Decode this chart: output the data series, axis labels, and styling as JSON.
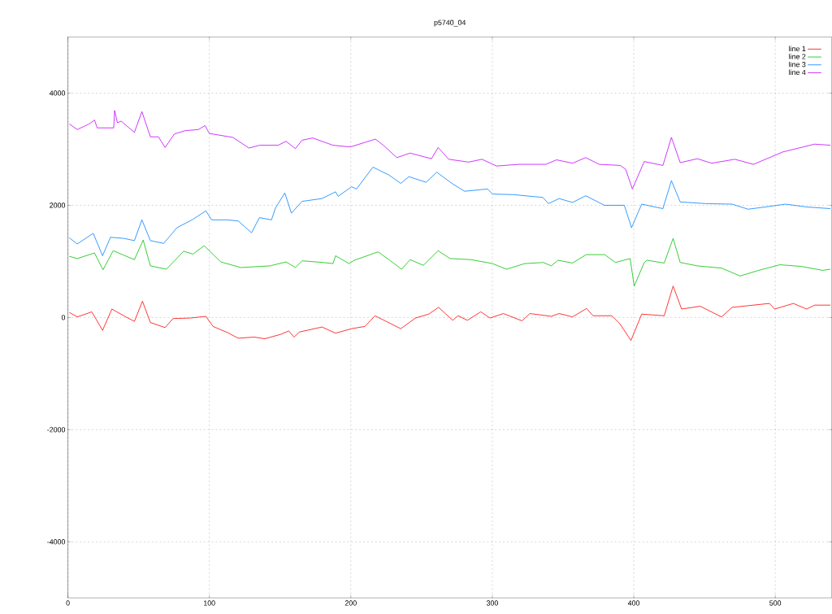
{
  "chart_data": {
    "type": "line",
    "title": "p5740_04",
    "xlim": [
      0,
      540
    ],
    "ylim": [
      -5000,
      5000
    ],
    "xticks": [
      0,
      100,
      200,
      300,
      400,
      500
    ],
    "yticks": [
      -4000,
      -2000,
      0,
      2000,
      4000
    ],
    "grid": true,
    "legend": "top right",
    "series": [
      {
        "name": "line 1",
        "color": "#ff0000",
        "x": [
          1,
          6.6,
          16.9,
          24.5,
          31.1,
          39.5,
          47,
          52.7,
          58.3,
          68.7,
          74.3,
          86.5,
          97.5,
          102.6,
          112.9,
          120.4,
          131.7,
          139.2,
          150.5,
          156.1,
          159.8,
          163.6,
          179.6,
          189.2,
          200.5,
          209.9,
          217.1,
          225,
          235.3,
          245.7,
          255.1,
          262,
          272,
          275.8,
          282.4,
          291.8,
          298.4,
          307.8,
          321,
          326.6,
          341.7,
          347.2,
          356.7,
          366.6,
          371.2,
          384.4,
          390.1,
          398,
          405.6,
          421.5,
          427.8,
          433.8,
          447,
          462,
          469.5,
          495.9,
          499.6,
          512.8,
          522.2,
          527.8,
          539
        ],
        "values": [
          90,
          10,
          100,
          -230,
          150,
          30,
          -70,
          290,
          -90,
          -180,
          -20,
          -10,
          20,
          -160,
          -270,
          -370,
          -350,
          -380,
          -300,
          -240,
          -350,
          -260,
          -170,
          -280,
          -200,
          -160,
          30,
          -70,
          -200,
          -10,
          60,
          180,
          -50,
          30,
          -50,
          100,
          -10,
          70,
          -60,
          70,
          20,
          70,
          10,
          160,
          30,
          30,
          -110,
          -410,
          60,
          30,
          560,
          150,
          200,
          10,
          180,
          250,
          150,
          250,
          150,
          220,
          220
        ]
      },
      {
        "name": "line 2",
        "color": "#00c000",
        "x": [
          1,
          6.6,
          18.8,
          24.8,
          32,
          47,
          53.2,
          58.3,
          69.6,
          81.8,
          88.4,
          96.3,
          108.1,
          122.2,
          142.9,
          154.2,
          160.8,
          165.5,
          180.5,
          187.4,
          189.2,
          198.7,
          202.5,
          219.3,
          226.9,
          235.9,
          241.9,
          251.3,
          261.7,
          270.1,
          285.2,
          300.2,
          310,
          322.8,
          336,
          341.7,
          346.4,
          356.7,
          366.3,
          379.5,
          387,
          397.4,
          400.3,
          407.4,
          409.3,
          421.5,
          427.8,
          432.8,
          445,
          462,
          475.2,
          488.3,
          503.3,
          518.4,
          533.4,
          539
        ],
        "values": [
          1090,
          1050,
          1150,
          850,
          1190,
          1030,
          1380,
          920,
          860,
          1180,
          1130,
          1280,
          990,
          890,
          920,
          990,
          890,
          1010,
          980,
          960,
          1100,
          960,
          1020,
          1170,
          1030,
          860,
          1030,
          930,
          1190,
          1050,
          1030,
          960,
          860,
          960,
          980,
          920,
          1020,
          970,
          1120,
          1120,
          980,
          1050,
          560,
          980,
          1020,
          970,
          1410,
          980,
          920,
          880,
          740,
          840,
          940,
          910,
          840,
          860
        ]
      },
      {
        "name": "line 3",
        "color": "#0080ff",
        "x": [
          1,
          6.6,
          17.9,
          24.5,
          30.1,
          39.5,
          47,
          52.3,
          58.3,
          67.7,
          77.1,
          88.4,
          97.5,
          101.6,
          112.9,
          120.4,
          129.8,
          135.4,
          143.9,
          146.7,
          153.3,
          158,
          165.5,
          179.6,
          189.2,
          191,
          200.5,
          204,
          215.6,
          226.9,
          235.3,
          241,
          253.2,
          260.7,
          272,
          280.5,
          296.6,
          300.2,
          315,
          335.7,
          339.7,
          347.2,
          356.7,
          366,
          379.2,
          393.3,
          398.4,
          405.6,
          420.6,
          426.6,
          432.8,
          450.7,
          469.5,
          480.8,
          495.9,
          507.2,
          522.2,
          539
        ],
        "values": [
          1420,
          1310,
          1500,
          1100,
          1430,
          1410,
          1370,
          1740,
          1370,
          1320,
          1600,
          1750,
          1900,
          1740,
          1740,
          1720,
          1510,
          1780,
          1740,
          1950,
          2220,
          1860,
          2070,
          2120,
          2240,
          2160,
          2330,
          2290,
          2680,
          2540,
          2390,
          2510,
          2410,
          2590,
          2380,
          2250,
          2290,
          2200,
          2190,
          2140,
          2030,
          2120,
          2050,
          2170,
          2000,
          2000,
          1600,
          2020,
          1940,
          2440,
          2060,
          2030,
          2020,
          1930,
          1980,
          2020,
          1970,
          1940
        ]
      },
      {
        "name": "line 4",
        "color": "#c000ff",
        "x": [
          1,
          6.6,
          15,
          18.8,
          20.7,
          32.4,
          33,
          35,
          37.6,
          47,
          52.3,
          58.3,
          64,
          68.7,
          75.2,
          82.8,
          92.2,
          96.9,
          100,
          116.6,
          128,
          135.5,
          148.6,
          154.2,
          160.8,
          165.5,
          173,
          179.6,
          187.4,
          199.6,
          217.4,
          223,
          232.5,
          241.9,
          257,
          261.7,
          269.2,
          283.3,
          292.7,
          303,
          319,
          337.9,
          345.4,
          356.7,
          366,
          375.5,
          390.5,
          394.3,
          399,
          407.4,
          420.6,
          426.6,
          432.8,
          445,
          455,
          471.4,
          484.6,
          495.9,
          505.2,
          516.5,
          527.8,
          539
        ],
        "values": [
          3450,
          3350,
          3450,
          3520,
          3380,
          3380,
          3690,
          3470,
          3500,
          3300,
          3670,
          3220,
          3220,
          3030,
          3270,
          3330,
          3350,
          3420,
          3280,
          3210,
          3020,
          3070,
          3070,
          3140,
          3010,
          3160,
          3200,
          3140,
          3070,
          3040,
          3180,
          3070,
          2850,
          2930,
          2830,
          3030,
          2820,
          2770,
          2820,
          2700,
          2730,
          2730,
          2810,
          2750,
          2850,
          2730,
          2710,
          2640,
          2290,
          2780,
          2710,
          3210,
          2760,
          2830,
          2750,
          2820,
          2730,
          2850,
          2950,
          3020,
          3090,
          3070
        ]
      }
    ]
  }
}
